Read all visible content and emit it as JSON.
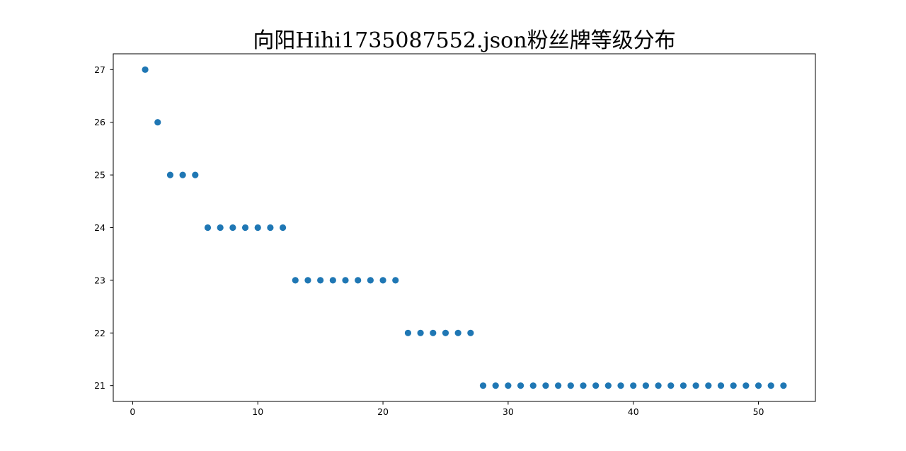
{
  "chart_data": {
    "type": "scatter",
    "title": "向阳Hihi1735087552.json粉丝牌等级分布",
    "xlabel": "",
    "ylabel": "",
    "xlim": [
      -1.55,
      54.55
    ],
    "ylim": [
      20.7,
      27.3
    ],
    "x_ticks": [
      0,
      10,
      20,
      30,
      40,
      50
    ],
    "y_ticks": [
      21,
      22,
      23,
      24,
      25,
      26,
      27
    ],
    "grid": false,
    "legend": "none",
    "marker_color": "#1f77b4",
    "x": [
      1,
      2,
      3,
      4,
      5,
      6,
      7,
      8,
      9,
      10,
      11,
      12,
      13,
      14,
      15,
      16,
      17,
      18,
      19,
      20,
      21,
      22,
      23,
      24,
      25,
      26,
      27,
      28,
      29,
      30,
      31,
      32,
      33,
      34,
      35,
      36,
      37,
      38,
      39,
      40,
      41,
      42,
      43,
      44,
      45,
      46,
      47,
      48,
      49,
      50,
      51,
      52
    ],
    "y": [
      27,
      26,
      25,
      25,
      25,
      24,
      24,
      24,
      24,
      24,
      24,
      24,
      23,
      23,
      23,
      23,
      23,
      23,
      23,
      23,
      23,
      22,
      22,
      22,
      22,
      22,
      22,
      21,
      21,
      21,
      21,
      21,
      21,
      21,
      21,
      21,
      21,
      21,
      21,
      21,
      21,
      21,
      21,
      21,
      21,
      21,
      21,
      21,
      21,
      21,
      21,
      21
    ]
  }
}
